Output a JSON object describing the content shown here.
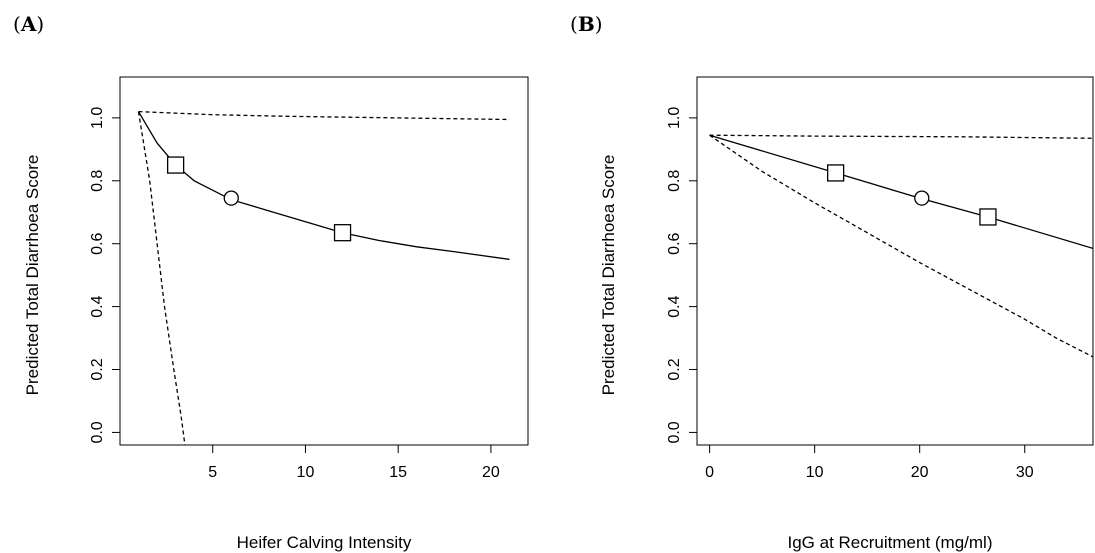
{
  "panels": [
    {
      "label_open": "(",
      "label_letter": "A",
      "label_close": ")"
    },
    {
      "label_open": "(",
      "label_letter": "B",
      "label_close": ")"
    }
  ],
  "chart_data": [
    {
      "type": "line",
      "panel": "A",
      "xlabel": "Heifer Calving Intensity",
      "ylabel": "Predicted Total Diarrhoea Score",
      "xlim": [
        0,
        22
      ],
      "ylim": [
        -0.04,
        1.13
      ],
      "xticks": [
        5,
        10,
        15,
        20
      ],
      "yticks": [
        0.0,
        0.2,
        0.4,
        0.6,
        0.8,
        1.0
      ],
      "grid": false,
      "series": [
        {
          "style": "solid",
          "values_xy": [
            [
              1,
              1.02
            ],
            [
              2,
              0.92
            ],
            [
              3,
              0.85
            ],
            [
              4,
              0.8
            ],
            [
              6,
              0.74
            ],
            [
              8,
              0.705
            ],
            [
              10,
              0.67
            ],
            [
              12,
              0.635
            ],
            [
              14,
              0.61
            ],
            [
              16,
              0.59
            ],
            [
              18,
              0.575
            ],
            [
              21,
              0.55
            ]
          ]
        },
        {
          "style": "dashed",
          "values_xy": [
            [
              1,
              1.02
            ],
            [
              5,
              1.01
            ],
            [
              9,
              1.005
            ],
            [
              15,
              1.0
            ],
            [
              21,
              0.995
            ]
          ]
        },
        {
          "style": "dashed",
          "values_xy": [
            [
              1,
              1.02
            ],
            [
              1.6,
              0.8
            ],
            [
              2.0,
              0.6
            ],
            [
              2.4,
              0.4
            ],
            [
              2.9,
              0.2
            ],
            [
              3.3,
              0.05
            ],
            [
              3.5,
              -0.04
            ]
          ]
        }
      ],
      "markers": [
        {
          "shape": "square",
          "x": 3,
          "y": 0.85
        },
        {
          "shape": "circle",
          "x": 6,
          "y": 0.745
        },
        {
          "shape": "square",
          "x": 12,
          "y": 0.635
        }
      ]
    },
    {
      "type": "line",
      "panel": "B",
      "xlabel": "IgG at Recruitment (mg/ml)",
      "ylabel": "Predicted Total Diarrhoea Score",
      "xlim": [
        -1.2,
        36.5
      ],
      "ylim": [
        -0.04,
        1.13
      ],
      "xticks": [
        0,
        10,
        20,
        30
      ],
      "yticks": [
        0.0,
        0.2,
        0.4,
        0.6,
        0.8,
        1.0
      ],
      "grid": false,
      "series": [
        {
          "style": "solid",
          "values_xy": [
            [
              0,
              0.945
            ],
            [
              12,
              0.825
            ],
            [
              20,
              0.745
            ],
            [
              26.5,
              0.685
            ],
            [
              36.5,
              0.585
            ]
          ]
        },
        {
          "style": "dashed",
          "values_xy": [
            [
              0,
              0.945
            ],
            [
              10,
              0.942
            ],
            [
              24,
              0.94
            ],
            [
              36.5,
              0.935
            ]
          ]
        },
        {
          "style": "dashed",
          "values_xy": [
            [
              0,
              0.945
            ],
            [
              5,
              0.83
            ],
            [
              10,
              0.73
            ],
            [
              15,
              0.635
            ],
            [
              20,
              0.54
            ],
            [
              25,
              0.45
            ],
            [
              30,
              0.36
            ],
            [
              33,
              0.3
            ],
            [
              36.5,
              0.24
            ]
          ]
        }
      ],
      "markers": [
        {
          "shape": "square",
          "x": 12,
          "y": 0.825
        },
        {
          "shape": "circle",
          "x": 20.2,
          "y": 0.745
        },
        {
          "shape": "square",
          "x": 26.5,
          "y": 0.685
        }
      ]
    }
  ]
}
